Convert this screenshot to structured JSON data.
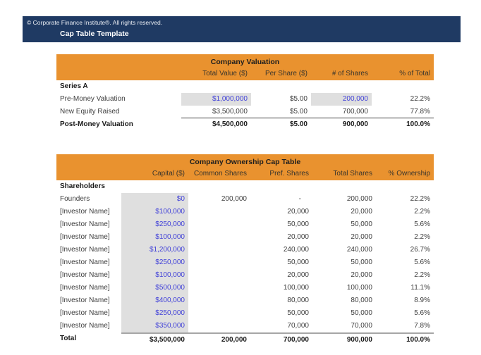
{
  "banner": {
    "copyright": "© Corporate Finance Institute®. All rights reserved.",
    "title": "Cap Table Template"
  },
  "colors": {
    "banner_navy": "#1F3A63",
    "accent_orange": "#E9922F",
    "input_value_blue": "#4040D8",
    "input_cell_gray": "#DFDFDF",
    "body_text": "#3D3D3D"
  },
  "valuation_table": {
    "title": "Company Valuation",
    "headers": [
      "Total Value ($)",
      "Per Share ($)",
      "# of Shares",
      "% of Total"
    ],
    "section": "Series A",
    "rows": [
      {
        "label": "Pre-Money Valuation",
        "total_value": "$1,000,000",
        "per_share": "$5.00",
        "shares": "200,000",
        "pct_total": "22.2%"
      },
      {
        "label": "New Equity Raised",
        "total_value": "$3,500,000",
        "per_share": "$5.00",
        "shares": "700,000",
        "pct_total": "77.8%"
      },
      {
        "label": "Post-Money Valuation",
        "total_value": "$4,500,000",
        "per_share": "$5.00",
        "shares": "900,000",
        "pct_total": "100.0%"
      }
    ]
  },
  "ownership_table": {
    "title": "Company Ownership Cap Table",
    "headers": [
      "Capital ($)",
      "Common Shares",
      "Pref. Shares",
      "Total Shares",
      "% Ownership"
    ],
    "section": "Shareholders",
    "rows": [
      {
        "label": "Founders",
        "capital": "$0",
        "common": "200,000",
        "pref": "-",
        "total": "200,000",
        "pct": "22.2%"
      },
      {
        "label": "[Investor Name]",
        "capital": "$100,000",
        "common": "",
        "pref": "20,000",
        "total": "20,000",
        "pct": "2.2%"
      },
      {
        "label": "[Investor Name]",
        "capital": "$250,000",
        "common": "",
        "pref": "50,000",
        "total": "50,000",
        "pct": "5.6%"
      },
      {
        "label": "[Investor Name]",
        "capital": "$100,000",
        "common": "",
        "pref": "20,000",
        "total": "20,000",
        "pct": "2.2%"
      },
      {
        "label": "[Investor Name]",
        "capital": "$1,200,000",
        "common": "",
        "pref": "240,000",
        "total": "240,000",
        "pct": "26.7%"
      },
      {
        "label": "[Investor Name]",
        "capital": "$250,000",
        "common": "",
        "pref": "50,000",
        "total": "50,000",
        "pct": "5.6%"
      },
      {
        "label": "[Investor Name]",
        "capital": "$100,000",
        "common": "",
        "pref": "20,000",
        "total": "20,000",
        "pct": "2.2%"
      },
      {
        "label": "[Investor Name]",
        "capital": "$500,000",
        "common": "",
        "pref": "100,000",
        "total": "100,000",
        "pct": "11.1%"
      },
      {
        "label": "[Investor Name]",
        "capital": "$400,000",
        "common": "",
        "pref": "80,000",
        "total": "80,000",
        "pct": "8.9%"
      },
      {
        "label": "[Investor Name]",
        "capital": "$250,000",
        "common": "",
        "pref": "50,000",
        "total": "50,000",
        "pct": "5.6%"
      },
      {
        "label": "[Investor Name]",
        "capital": "$350,000",
        "common": "",
        "pref": "70,000",
        "total": "70,000",
        "pct": "7.8%"
      }
    ],
    "total": {
      "label": "Total",
      "capital": "$3,500,000",
      "common": "200,000",
      "pref": "700,000",
      "total": "900,000",
      "pct": "100.0%"
    }
  }
}
